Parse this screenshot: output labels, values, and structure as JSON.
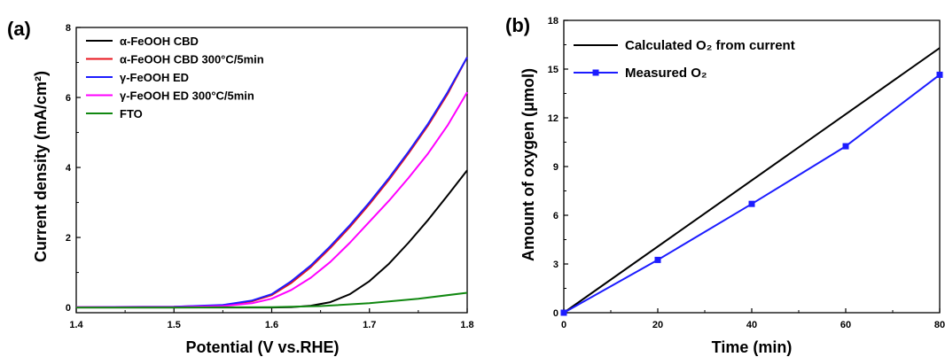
{
  "chart_data": [
    {
      "type": "line",
      "panel_label": "(a)",
      "xlabel": "Potential (V vs.RHE)",
      "ylabel": "Current density (mA/cm²)",
      "xlim": [
        1.4,
        1.8
      ],
      "ylim": [
        -0.15,
        8
      ],
      "xticks": [
        1.4,
        1.5,
        1.6,
        1.7,
        1.8
      ],
      "yticks": [
        0,
        2,
        4,
        6,
        8
      ],
      "legend_position": "top-left",
      "grid": false,
      "series": [
        {
          "name": "α-FeOOH CBD",
          "color": "#000000",
          "x": [
            1.4,
            1.5,
            1.6,
            1.62,
            1.64,
            1.66,
            1.68,
            1.7,
            1.72,
            1.74,
            1.76,
            1.78,
            1.8
          ],
          "y": [
            0,
            0,
            0,
            0.01,
            0.05,
            0.15,
            0.38,
            0.75,
            1.25,
            1.85,
            2.5,
            3.2,
            3.92
          ]
        },
        {
          "name": "α-FeOOH CBD 300°C/5min",
          "color": "#e8141c",
          "x": [
            1.4,
            1.5,
            1.55,
            1.58,
            1.6,
            1.62,
            1.64,
            1.66,
            1.68,
            1.7,
            1.72,
            1.74,
            1.76,
            1.78,
            1.8
          ],
          "y": [
            0.01,
            0.02,
            0.06,
            0.18,
            0.35,
            0.7,
            1.15,
            1.7,
            2.3,
            2.95,
            3.65,
            4.4,
            5.2,
            6.1,
            7.15
          ]
        },
        {
          "name": "γ-FeOOH ED",
          "color": "#1c1cff",
          "x": [
            1.4,
            1.5,
            1.55,
            1.58,
            1.6,
            1.62,
            1.64,
            1.66,
            1.68,
            1.7,
            1.72,
            1.74,
            1.76,
            1.78,
            1.8
          ],
          "y": [
            0.01,
            0.02,
            0.07,
            0.2,
            0.38,
            0.75,
            1.2,
            1.75,
            2.35,
            3.0,
            3.7,
            4.45,
            5.25,
            6.15,
            7.15
          ]
        },
        {
          "name": "γ-FeOOH ED 300°C/5min",
          "color": "#ff00ff",
          "x": [
            1.4,
            1.5,
            1.55,
            1.58,
            1.6,
            1.62,
            1.64,
            1.66,
            1.68,
            1.7,
            1.72,
            1.74,
            1.76,
            1.78,
            1.8
          ],
          "y": [
            0.01,
            0.01,
            0.04,
            0.12,
            0.25,
            0.5,
            0.85,
            1.3,
            1.85,
            2.45,
            3.05,
            3.7,
            4.4,
            5.2,
            6.15
          ]
        },
        {
          "name": "FTO",
          "color": "#118811",
          "x": [
            1.4,
            1.5,
            1.6,
            1.65,
            1.7,
            1.75,
            1.8
          ],
          "y": [
            0,
            0,
            0.01,
            0.04,
            0.12,
            0.25,
            0.42
          ]
        }
      ]
    },
    {
      "type": "line",
      "panel_label": "(b)",
      "xlabel": "Time (min)",
      "ylabel": "Amount of oxygen (μmol)",
      "xlim": [
        0,
        80
      ],
      "ylim": [
        0,
        18
      ],
      "xticks": [
        0,
        20,
        40,
        60,
        80
      ],
      "yticks": [
        0,
        3,
        6,
        9,
        12,
        15,
        18
      ],
      "legend_position": "top-left",
      "grid": false,
      "series": [
        {
          "name": "Calculated O₂ from current",
          "color": "#000000",
          "marker": "none",
          "x": [
            0,
            80
          ],
          "y": [
            0,
            16.3
          ]
        },
        {
          "name": "Measured O₂",
          "color": "#1c1cff",
          "marker": "square",
          "x": [
            0,
            20,
            40,
            60,
            80
          ],
          "y": [
            0,
            3.25,
            6.7,
            10.25,
            14.65
          ]
        }
      ]
    }
  ]
}
